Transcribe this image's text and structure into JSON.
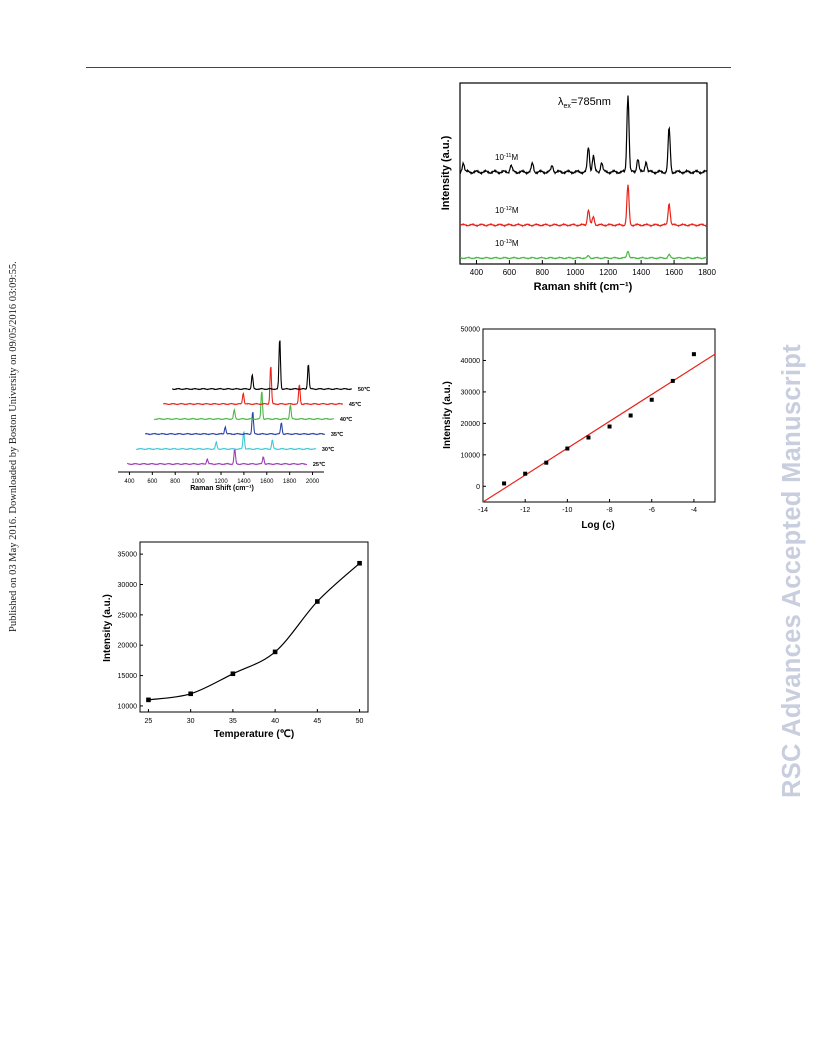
{
  "page": {
    "side_text": "Published on 03 May 2016. Downloaded by Boston University on 09/05/2016 03:09:55.",
    "watermark": "RSC Advances Accepted Manuscript"
  },
  "chart_data": [
    {
      "type": "line",
      "id": "concentration_spectra",
      "xlabel": "Raman shift (cm⁻¹)",
      "ylabel": "Intensity (a.u.)",
      "xlim": [
        300,
        1800
      ],
      "xticks": [
        400,
        600,
        800,
        1000,
        1200,
        1400,
        1600,
        1800
      ],
      "annotation": "λ ex=785nm",
      "annotation_main": "λ",
      "annotation_sub": "ex",
      "annotation_tail": "=785nm",
      "series": [
        {
          "name": "10⁻¹¹M",
          "name_base": "10",
          "name_exp": "-11",
          "name_unit": "M",
          "color": "#000000",
          "peaks": [
            [
              320,
              0.18
            ],
            [
              610,
              0.12
            ],
            [
              740,
              0.15
            ],
            [
              860,
              0.12
            ],
            [
              1080,
              0.45
            ],
            [
              1110,
              0.3
            ],
            [
              1160,
              0.18
            ],
            [
              1320,
              1.4
            ],
            [
              1380,
              0.25
            ],
            [
              1430,
              0.2
            ],
            [
              1570,
              0.8
            ]
          ]
        },
        {
          "name": "10⁻¹²M",
          "name_base": "10",
          "name_exp": "-12",
          "name_unit": "M",
          "color": "#e8231a",
          "peaks": [
            [
              1080,
              0.28
            ],
            [
              1110,
              0.15
            ],
            [
              1320,
              0.72
            ],
            [
              1570,
              0.4
            ]
          ]
        },
        {
          "name": "10⁻¹³M",
          "name_base": "10",
          "name_exp": "-13",
          "name_unit": "M",
          "color": "#4cb848",
          "peaks": [
            [
              1080,
              0.05
            ],
            [
              1320,
              0.18
            ],
            [
              1570,
              0.08
            ]
          ]
        }
      ]
    },
    {
      "type": "line",
      "id": "temperature_spectra",
      "xlabel": "Raman Shift (cm⁻¹)",
      "xticks": [
        400,
        600,
        800,
        1000,
        1200,
        1400,
        1600,
        1800,
        2000
      ],
      "series": [
        {
          "name": "25℃",
          "color": "#9b3fb5",
          "peaks": [
            [
              1080,
              0.35
            ],
            [
              1320,
              1.0
            ],
            [
              1570,
              0.5
            ]
          ]
        },
        {
          "name": "30℃",
          "color": "#3fc8d6",
          "peaks": [
            [
              1080,
              0.45
            ],
            [
              1320,
              1.2
            ],
            [
              1570,
              0.6
            ]
          ]
        },
        {
          "name": "35℃",
          "color": "#2c44a8",
          "peaks": [
            [
              1080,
              0.5
            ],
            [
              1320,
              1.5
            ],
            [
              1570,
              0.75
            ]
          ]
        },
        {
          "name": "40℃",
          "color": "#4cb848",
          "peaks": [
            [
              1080,
              0.6
            ],
            [
              1320,
              1.9
            ],
            [
              1570,
              0.95
            ]
          ]
        },
        {
          "name": "45℃",
          "color": "#e8231a",
          "peaks": [
            [
              1080,
              0.75
            ],
            [
              1320,
              2.6
            ],
            [
              1570,
              1.3
            ]
          ]
        },
        {
          "name": "50℃",
          "color": "#000000",
          "peaks": [
            [
              1080,
              0.95
            ],
            [
              1320,
              3.4
            ],
            [
              1570,
              1.7
            ]
          ]
        }
      ]
    },
    {
      "type": "scatter",
      "id": "log_concentration_fit",
      "xlabel": "Log (c)",
      "ylabel": "Intensity (a.u.)",
      "xlim": [
        -14,
        -3
      ],
      "ylim": [
        -5000,
        50000
      ],
      "xticks": [
        -14,
        -12,
        -10,
        -8,
        -6,
        -4
      ],
      "yticks": [
        0,
        10000,
        20000,
        30000,
        40000,
        50000
      ],
      "points": [
        [
          -13,
          900
        ],
        [
          -12,
          4000
        ],
        [
          -11,
          7500
        ],
        [
          -10,
          12000
        ],
        [
          -9,
          15500
        ],
        [
          -8,
          19000
        ],
        [
          -7,
          22500
        ],
        [
          -6,
          27500
        ],
        [
          -5,
          33500
        ],
        [
          -4,
          42000
        ]
      ],
      "fit_line": {
        "x": [
          -14,
          -3
        ],
        "y": [
          -5000,
          42000
        ],
        "color": "#e8231a"
      }
    },
    {
      "type": "scatter",
      "id": "temperature_intensity",
      "xlabel": "Temperature (℃)",
      "ylabel": "Intensity (a.u.)",
      "xlim": [
        24,
        51
      ],
      "ylim": [
        9000,
        37000
      ],
      "xticks": [
        25,
        30,
        35,
        40,
        45,
        50
      ],
      "yticks": [
        10000,
        15000,
        20000,
        25000,
        30000,
        35000
      ],
      "points": [
        [
          25,
          11000
        ],
        [
          30,
          12000
        ],
        [
          35,
          15300
        ],
        [
          40,
          18900
        ],
        [
          45,
          27200
        ],
        [
          50,
          33500
        ]
      ]
    }
  ]
}
